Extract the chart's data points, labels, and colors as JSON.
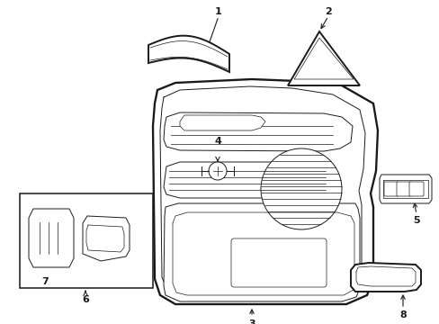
{
  "background_color": "#ffffff",
  "line_color": "#1a1a1a",
  "lw_main": 1.4,
  "lw_thin": 0.7,
  "lw_vthiin": 0.5,
  "fig_width": 4.89,
  "fig_height": 3.6,
  "dpi": 100
}
